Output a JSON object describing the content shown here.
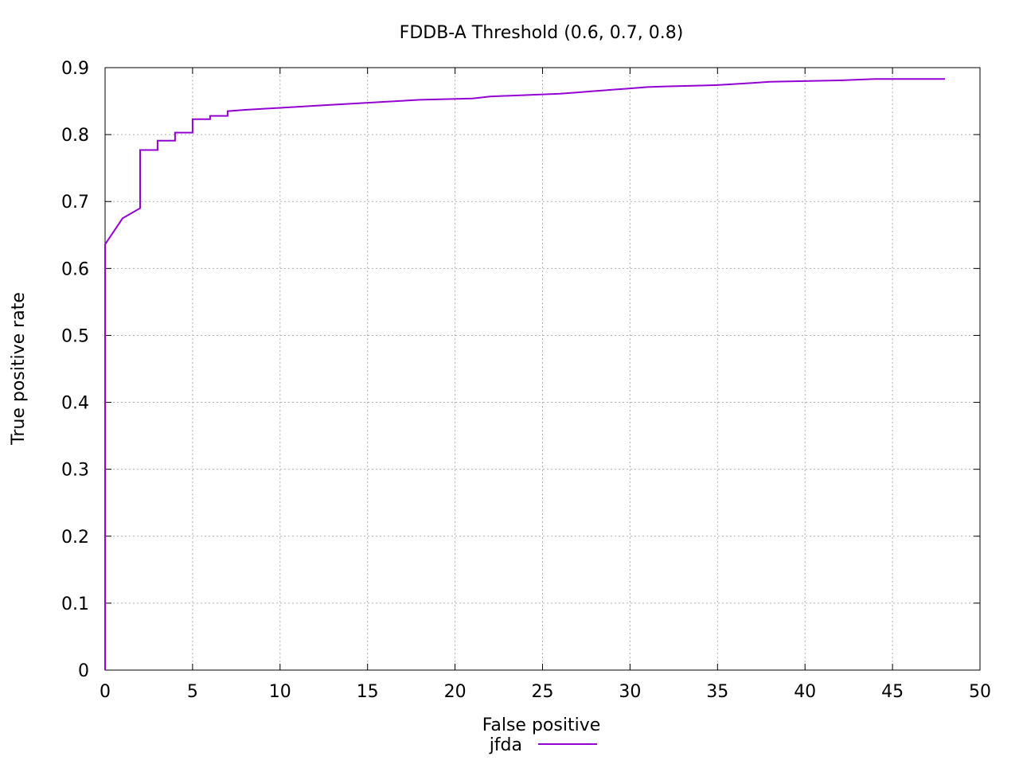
{
  "chart_data": {
    "type": "line",
    "title": "FDDB-A Threshold (0.6, 0.7, 0.8)",
    "xlabel": "False positive",
    "ylabel": "True positive rate",
    "xlim": [
      0,
      50
    ],
    "ylim": [
      0,
      0.9
    ],
    "x_ticks": [
      "0",
      "5",
      "10",
      "15",
      "20",
      "25",
      "30",
      "35",
      "40",
      "45",
      "50"
    ],
    "y_ticks": [
      "0",
      "0.1",
      "0.2",
      "0.3",
      "0.4",
      "0.5",
      "0.6",
      "0.7",
      "0.8",
      "0.9"
    ],
    "grid": true,
    "legend_position": "bottom-center",
    "series": [
      {
        "name": "jfda",
        "color": "#9400d3",
        "x": [
          0,
          0,
          1,
          2,
          2,
          3,
          3,
          4,
          4,
          5,
          5,
          6,
          6,
          7,
          7,
          8,
          10,
          12,
          14,
          16,
          18,
          21,
          22,
          26,
          27,
          28,
          30,
          31,
          32,
          35,
          37,
          38,
          42,
          44,
          48
        ],
        "y": [
          0,
          0.636,
          0.675,
          0.69,
          0.777,
          0.777,
          0.791,
          0.791,
          0.803,
          0.803,
          0.823,
          0.823,
          0.828,
          0.828,
          0.835,
          0.837,
          0.84,
          0.843,
          0.846,
          0.849,
          0.852,
          0.854,
          0.857,
          0.861,
          0.863,
          0.865,
          0.869,
          0.871,
          0.872,
          0.874,
          0.877,
          0.879,
          0.881,
          0.883,
          0.883
        ]
      }
    ]
  }
}
